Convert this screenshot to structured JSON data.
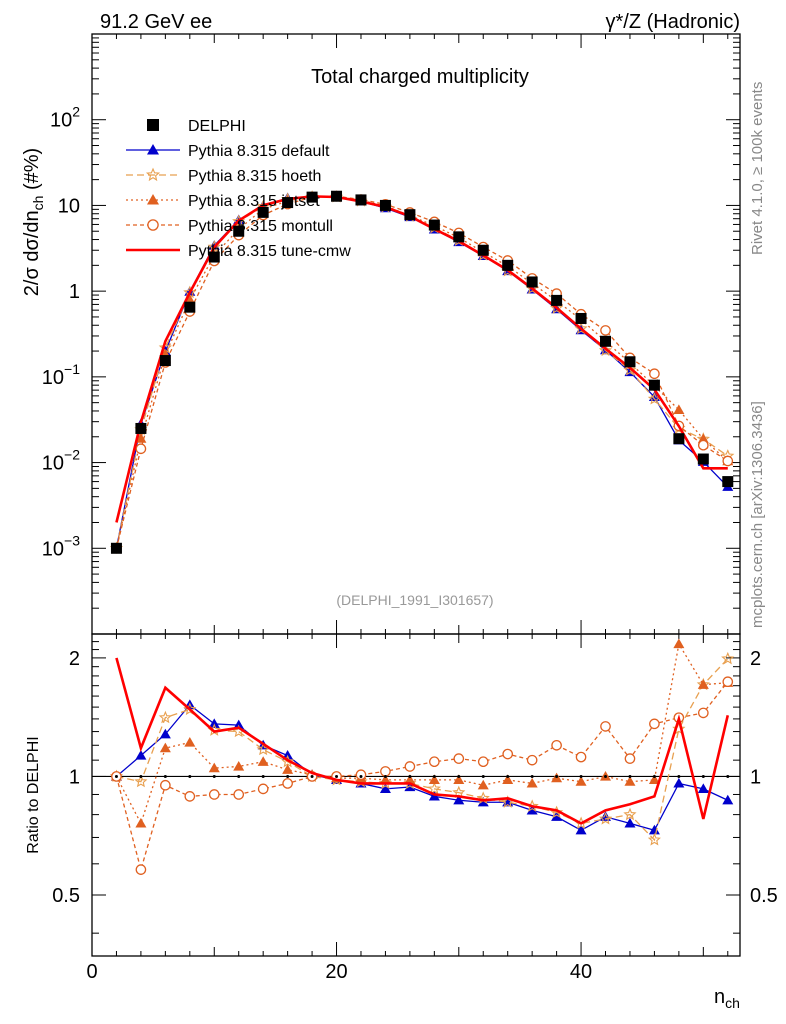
{
  "header": {
    "left": "91.2 GeV ee",
    "right": "γ*/Z (Hadronic)"
  },
  "side_labels": {
    "rivet": "Rivet 4.1.0, ≥ 100k events",
    "mcplots": "mcplots.cern.ch [arXiv:1306.3436]"
  },
  "chart_data": {
    "type": "line",
    "title": "Total charged multiplicity",
    "analysis_id": "(DELPHI_1991_I301657)",
    "xlabel": "n",
    "xlabel_sub": "ch",
    "ylabel": "2/σ  dσ/dn",
    "ylabel_sub": "ch",
    "ylabel_suffix": " (#%)",
    "ratio_ylabel": "Ratio to DELPHI",
    "xlim": [
      0,
      53
    ],
    "ylim": [
      0.0001,
      1000
    ],
    "ratio_ylim": [
      0.35,
      2.3
    ],
    "x_ticks": [
      0,
      20,
      40
    ],
    "main_y_tick_labels": [
      {
        "v": 0.001,
        "base": "10",
        "exp": "−3"
      },
      {
        "v": 0.01,
        "base": "10",
        "exp": "−2"
      },
      {
        "v": 0.1,
        "base": "10",
        "exp": "−1"
      },
      {
        "v": 1,
        "base": "1",
        "exp": ""
      },
      {
        "v": 10,
        "base": "10",
        "exp": ""
      },
      {
        "v": 100,
        "base": "10",
        "exp": "2"
      }
    ],
    "ratio_y_ticks": [
      0.5,
      1,
      2
    ],
    "ratio_y_tick_labels": [
      "0.5",
      "1",
      "2"
    ],
    "x": [
      2,
      4,
      6,
      8,
      10,
      12,
      14,
      16,
      18,
      20,
      22,
      24,
      26,
      28,
      30,
      32,
      34,
      36,
      38,
      40,
      42,
      44,
      46,
      48,
      50,
      52
    ],
    "data": {
      "name": "DELPHI",
      "values": [
        0.001,
        0.025,
        0.155,
        0.65,
        2.5,
        5.0,
        8.3,
        10.8,
        12.5,
        12.8,
        11.6,
        10.0,
        7.8,
        5.9,
        4.3,
        3.0,
        2.0,
        1.28,
        0.78,
        0.48,
        0.26,
        0.15,
        0.08,
        0.019,
        0.011,
        0.006
      ]
    },
    "series": [
      {
        "name": "Pythia 8.315 default",
        "color": "#0000cc",
        "marker": "triangle",
        "dash": "",
        "ratio": [
          1.0,
          1.13,
          1.28,
          1.52,
          1.36,
          1.35,
          1.2,
          1.13,
          1.01,
          0.98,
          0.96,
          0.93,
          0.94,
          0.89,
          0.87,
          0.86,
          0.86,
          0.82,
          0.79,
          0.73,
          0.79,
          0.76,
          0.73,
          0.96,
          0.93,
          0.87
        ]
      },
      {
        "name": "Pythia 8.315 hoeth",
        "color": "#e8a050",
        "marker": "star",
        "dash": "7,4",
        "ratio": [
          1.0,
          0.97,
          1.41,
          1.48,
          1.31,
          1.3,
          1.17,
          1.09,
          1.0,
          0.98,
          0.97,
          0.96,
          0.96,
          0.93,
          0.91,
          0.88,
          0.86,
          0.84,
          0.81,
          0.76,
          0.78,
          0.8,
          0.69,
          1.32,
          1.71,
          1.99
        ]
      },
      {
        "name": "Pythia 8.315 jetset",
        "color": "#e06020",
        "marker": "triangle",
        "dash": "2,3",
        "ratio": [
          1.0,
          0.76,
          1.18,
          1.22,
          1.05,
          1.06,
          1.09,
          1.04,
          1.01,
          0.99,
          0.99,
          0.98,
          0.98,
          0.98,
          0.98,
          0.95,
          0.98,
          0.96,
          0.99,
          0.97,
          1.0,
          0.97,
          0.98,
          2.17,
          1.71,
          1.73
        ]
      },
      {
        "name": "Pythia 8.315 montull",
        "color": "#e06020",
        "marker": "circle-open",
        "dash": "4,3",
        "ratio": [
          1.0,
          0.58,
          0.95,
          0.89,
          0.9,
          0.9,
          0.93,
          0.96,
          1.0,
          1.0,
          1.01,
          1.03,
          1.06,
          1.09,
          1.11,
          1.09,
          1.14,
          1.1,
          1.2,
          1.12,
          1.34,
          1.11,
          1.36,
          1.41,
          1.45,
          1.74
        ]
      },
      {
        "name": "Pythia 8.315 tune-cmw",
        "color": "#ff0000",
        "marker": "none",
        "dash": "",
        "ratio": [
          2.0,
          1.18,
          1.68,
          1.48,
          1.3,
          1.33,
          1.21,
          1.1,
          1.02,
          0.98,
          0.96,
          0.96,
          0.96,
          0.9,
          0.89,
          0.87,
          0.88,
          0.84,
          0.82,
          0.76,
          0.82,
          0.85,
          0.89,
          1.4,
          0.78,
          1.43
        ]
      }
    ]
  }
}
